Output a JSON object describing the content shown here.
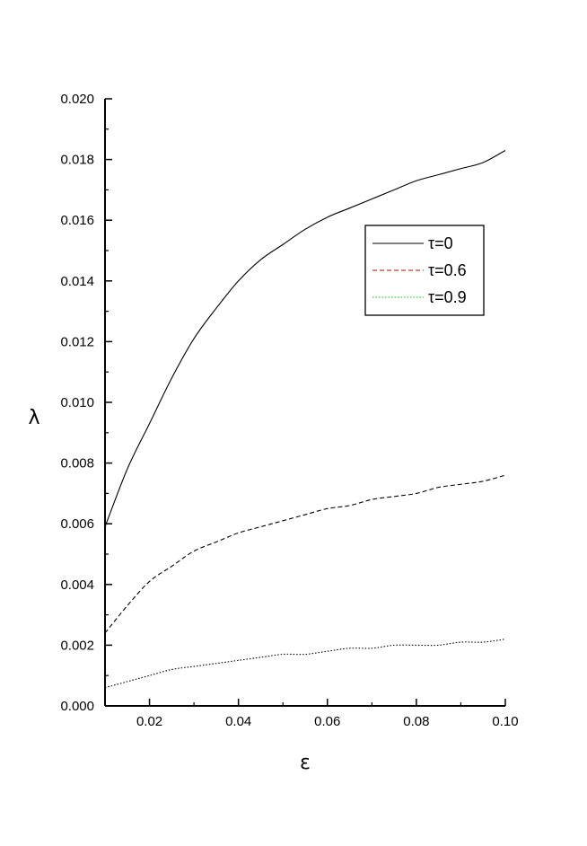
{
  "chart_data": {
    "type": "line",
    "xlabel": "ε",
    "ylabel": "λ",
    "xlim": [
      0.01,
      0.1
    ],
    "ylim": [
      0.0,
      0.02
    ],
    "xticks": [
      "0.02",
      "0.04",
      "0.06",
      "0.08",
      "0.10"
    ],
    "xtick_values": [
      0.02,
      0.04,
      0.06,
      0.08,
      0.1
    ],
    "yticks": [
      "0.000",
      "0.002",
      "0.004",
      "0.006",
      "0.008",
      "0.010",
      "0.012",
      "0.014",
      "0.016",
      "0.018",
      "0.020"
    ],
    "ytick_values": [
      0.0,
      0.002,
      0.004,
      0.006,
      0.008,
      0.01,
      0.012,
      0.014,
      0.016,
      0.018,
      0.02
    ],
    "x": [
      0.01,
      0.015,
      0.02,
      0.025,
      0.03,
      0.035,
      0.04,
      0.045,
      0.05,
      0.055,
      0.06,
      0.065,
      0.07,
      0.075,
      0.08,
      0.085,
      0.09,
      0.095,
      0.1
    ],
    "series": [
      {
        "name": "τ=0",
        "color": "#000000",
        "dash": "solid",
        "values": [
          0.0059,
          0.0078,
          0.0093,
          0.0108,
          0.0121,
          0.0131,
          0.014,
          0.0147,
          0.0152,
          0.0157,
          0.0161,
          0.0164,
          0.0167,
          0.017,
          0.0173,
          0.0175,
          0.0177,
          0.0179,
          0.0183
        ]
      },
      {
        "name": "τ=0.6",
        "color": "#000000",
        "legend_color": "#cc0000",
        "dash": "dashed",
        "values": [
          0.0024,
          0.0033,
          0.0041,
          0.0046,
          0.0051,
          0.0054,
          0.0057,
          0.0059,
          0.0061,
          0.0063,
          0.0065,
          0.0066,
          0.0068,
          0.0069,
          0.007,
          0.0072,
          0.0073,
          0.0074,
          0.0076
        ]
      },
      {
        "name": "τ=0.9",
        "color": "#000000",
        "legend_color": "#00cc00",
        "dash": "dotted",
        "values": [
          0.0006,
          0.0008,
          0.001,
          0.0012,
          0.0013,
          0.0014,
          0.0015,
          0.0016,
          0.0017,
          0.0017,
          0.0018,
          0.0019,
          0.0019,
          0.002,
          0.002,
          0.002,
          0.0021,
          0.0021,
          0.0022
        ]
      }
    ],
    "legend_position": "top-right",
    "grid": false
  }
}
